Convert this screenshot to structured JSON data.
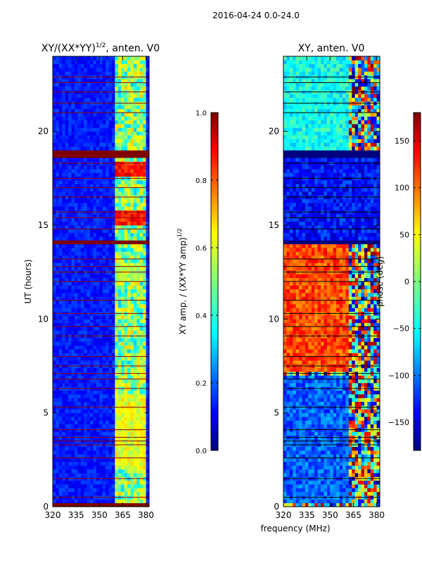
{
  "suptitle": "2016-04-24 0.0-24.0",
  "shared_xlabel": "frequency (MHz)",
  "colors": {
    "jet": [
      "#00007f",
      "#0000ff",
      "#0080ff",
      "#00ffff",
      "#80ff80",
      "#ffff00",
      "#ff8000",
      "#ff0000",
      "#7f0000"
    ],
    "flag_line_left": "#8b0000",
    "flag_line_right": "#000000"
  },
  "chart_data": [
    {
      "type": "heatmap",
      "title": "XY/(XX*YY)",
      "title_exponent": "1/2",
      "title_suffix": ", anten. V0",
      "xlabel": "",
      "ylabel": "UT (hours)",
      "xlim": [
        320,
        382
      ],
      "ylim": [
        0,
        24
      ],
      "xticks": [
        320,
        335,
        350,
        365,
        380
      ],
      "yticks": [
        0,
        5,
        10,
        15,
        20
      ],
      "colorbar": {
        "label": "XY amp. / (XX*YY amp)",
        "label_exponent": "1/2",
        "range": [
          0.0,
          1.0
        ],
        "ticks": [
          0.0,
          0.2,
          0.4,
          0.6,
          0.8,
          1.0
        ],
        "tick_labels": [
          "0.0",
          "0.2",
          "0.4",
          "0.6",
          "0.8",
          "1.0"
        ]
      },
      "flagged_bands_hours": [
        [
          0.0,
          0.2
        ],
        [
          13.95,
          14.15
        ],
        [
          18.6,
          18.95
        ]
      ],
      "flagged_lines_hours": [
        0.5,
        1.5,
        2.6,
        3.3,
        3.5,
        3.7,
        4.1,
        5.3,
        6.3,
        6.8,
        7.1,
        7.5,
        8.0,
        9.1,
        9.6,
        10.3,
        11.0,
        12.0,
        12.5,
        12.8,
        13.2,
        14.8,
        15.4,
        15.7,
        16.5,
        17.0,
        17.5,
        18.3,
        21.0,
        21.5,
        22.1,
        22.6,
        22.9
      ],
      "low_freq_mean": 0.15,
      "high_freq_band_mhz": [
        361,
        380
      ],
      "high_freq_mean": 0.5,
      "bright_bands_hours": [
        [
          15.0,
          15.8,
          0.85
        ],
        [
          17.6,
          18.4,
          0.85
        ],
        [
          12.0,
          13.0,
          0.55
        ],
        [
          2.0,
          6.0,
          0.6
        ]
      ]
    },
    {
      "type": "heatmap",
      "title": "XY, anten. V0",
      "xlabel": "",
      "ylabel": "",
      "xlim": [
        320,
        382
      ],
      "ylim": [
        0,
        24
      ],
      "xticks": [
        320,
        335,
        350,
        365,
        380
      ],
      "yticks": [
        0,
        5,
        10,
        15,
        20
      ],
      "colorbar": {
        "label": "phase (deg)",
        "range": [
          -180,
          180
        ],
        "ticks": [
          -150,
          -100,
          -50,
          0,
          50,
          100,
          150
        ],
        "tick_labels": [
          "−150",
          "−100",
          "−50",
          "0",
          "50",
          "100",
          "150"
        ]
      },
      "flagged_bands_hours": [
        [
          18.6,
          18.95
        ],
        [
          13.95,
          14.15
        ]
      ],
      "flagged_lines_hours": [
        0.5,
        1.5,
        2.6,
        3.3,
        3.5,
        3.7,
        4.1,
        5.3,
        6.3,
        6.8,
        7.1,
        7.5,
        8.0,
        9.1,
        9.6,
        10.3,
        11.0,
        12.0,
        12.5,
        12.8,
        13.2,
        14.8,
        15.4,
        15.7,
        16.5,
        17.0,
        17.5,
        18.3,
        21.0,
        21.5,
        22.1,
        22.6,
        22.9
      ],
      "phase_regions": [
        {
          "hours": [
            7.2,
            14.0
          ],
          "freq_mhz": [
            320,
            362
          ],
          "phase_deg": 110
        },
        {
          "hours": [
            0.2,
            7.0
          ],
          "freq_mhz": [
            320,
            362
          ],
          "phase_deg": -100
        },
        {
          "hours": [
            14.2,
            18.5
          ],
          "freq_mhz": [
            320,
            382
          ],
          "phase_deg": -130
        },
        {
          "hours": [
            19.0,
            24.0
          ],
          "freq_mhz": [
            320,
            362
          ],
          "phase_deg": -40
        }
      ]
    }
  ]
}
